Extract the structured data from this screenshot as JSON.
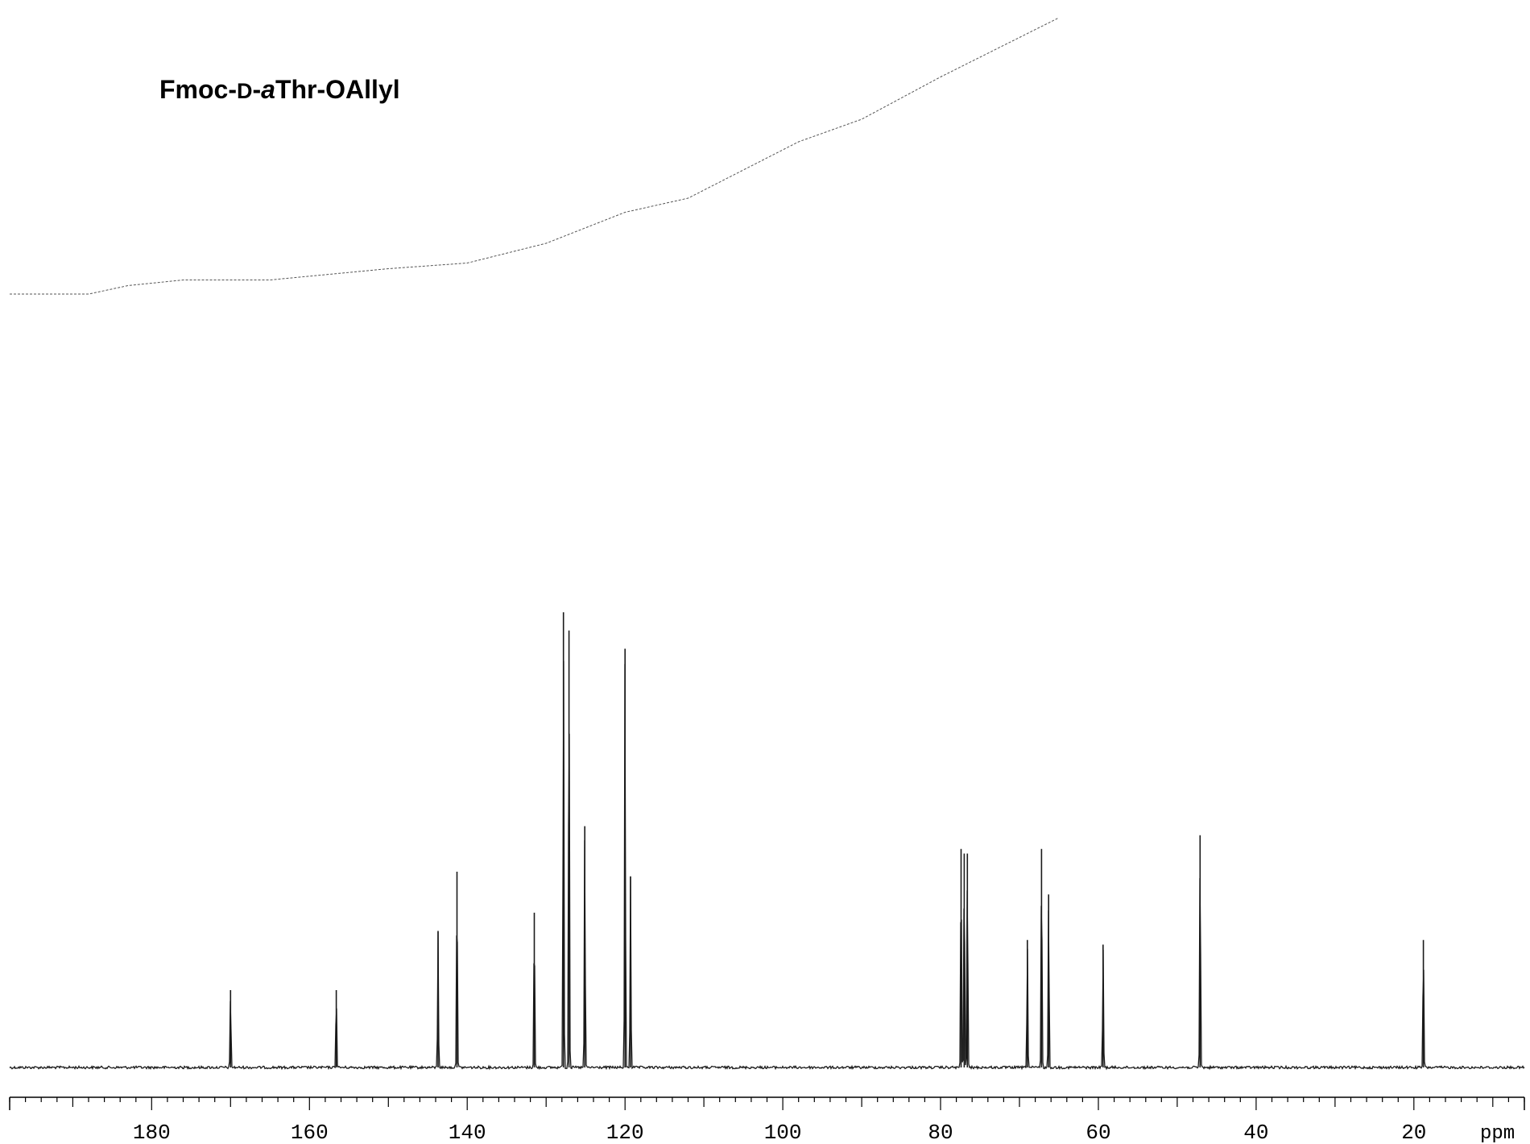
{
  "chart_data": {
    "type": "line",
    "title": {
      "prefix": "Fmoc-",
      "config": "D",
      "mid": "-",
      "italic": "a",
      "suffix": "Thr-OAllyl"
    },
    "xlabel": "ppm",
    "xlim": [
      198,
      6
    ],
    "x_direction": "reversed",
    "major_tick_labels": [
      180,
      160,
      140,
      120,
      100,
      80,
      60,
      40,
      20
    ],
    "grid": false,
    "legend": "none",
    "peaks": [
      {
        "ppm": 170.0,
        "height": 0.17
      },
      {
        "ppm": 156.6,
        "height": 0.17
      },
      {
        "ppm": 143.7,
        "height": 0.3
      },
      {
        "ppm": 141.3,
        "height": 0.43
      },
      {
        "ppm": 131.5,
        "height": 0.34
      },
      {
        "ppm": 127.8,
        "height": 1.0
      },
      {
        "ppm": 127.1,
        "height": 0.96
      },
      {
        "ppm": 125.1,
        "height": 0.53
      },
      {
        "ppm": 120.0,
        "height": 0.92
      },
      {
        "ppm": 119.3,
        "height": 0.42
      },
      {
        "ppm": 77.4,
        "height": 0.48
      },
      {
        "ppm": 77.0,
        "height": 0.47
      },
      {
        "ppm": 76.6,
        "height": 0.47
      },
      {
        "ppm": 69.0,
        "height": 0.28
      },
      {
        "ppm": 67.2,
        "height": 0.48
      },
      {
        "ppm": 66.3,
        "height": 0.38
      },
      {
        "ppm": 59.4,
        "height": 0.27
      },
      {
        "ppm": 47.1,
        "height": 0.51
      },
      {
        "ppm": 18.8,
        "height": 0.28
      }
    ],
    "integral_curve": [
      [
        198,
        0.0
      ],
      [
        188,
        0.0
      ],
      [
        183,
        0.03
      ],
      [
        176,
        0.05
      ],
      [
        165,
        0.05
      ],
      [
        150,
        0.09
      ],
      [
        140,
        0.11
      ],
      [
        130,
        0.18
      ],
      [
        120,
        0.29
      ],
      [
        112,
        0.34
      ],
      [
        105,
        0.44
      ],
      [
        98,
        0.54
      ],
      [
        90,
        0.62
      ],
      [
        80,
        0.77
      ],
      [
        70,
        0.91
      ],
      [
        65,
        0.98
      ]
    ],
    "colors": {
      "trace": "#1a1a1a",
      "integral": "#555555"
    }
  }
}
